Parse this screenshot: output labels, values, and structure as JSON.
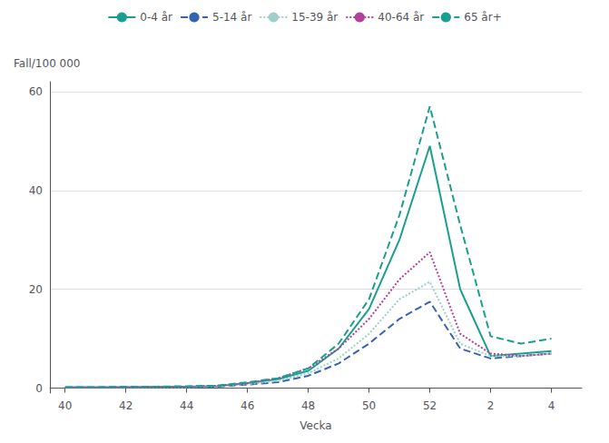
{
  "chart_data": {
    "type": "line",
    "xlabel": "Vecka",
    "ylabel": "Fall/100 000",
    "x": [
      40,
      41,
      42,
      43,
      44,
      45,
      46,
      47,
      48,
      49,
      50,
      51,
      52,
      53,
      54,
      55,
      56
    ],
    "xlim": [
      39.5,
      57
    ],
    "xticks": [
      40,
      42,
      44,
      46,
      48,
      50,
      52,
      {
        "value": 54,
        "label": "2"
      },
      {
        "value": 56,
        "label": "4"
      }
    ],
    "ylim": [
      -1,
      62
    ],
    "yticks": [
      0,
      20,
      40,
      60
    ],
    "grid": true,
    "legend": "top",
    "series": [
      {
        "name": "0-4 år",
        "color": "#1a9e8f",
        "line_style": "solid",
        "values": [
          0.2,
          0.2,
          0.2,
          0.3,
          0.3,
          0.4,
          1.0,
          1.8,
          3.5,
          8.0,
          16.0,
          30.0,
          49.0,
          20.0,
          6.5,
          7.0,
          7.5
        ]
      },
      {
        "name": "5-14 år",
        "color": "#3565b0",
        "line_style": "dashed",
        "values": [
          0.1,
          0.1,
          0.1,
          0.2,
          0.2,
          0.3,
          0.7,
          1.2,
          2.5,
          5.0,
          9.0,
          14.0,
          17.5,
          8.0,
          6.0,
          6.5,
          7.0
        ]
      },
      {
        "name": "15-39 år",
        "color": "#9ecfcb",
        "line_style": "dotted",
        "values": [
          0.1,
          0.1,
          0.2,
          0.2,
          0.2,
          0.4,
          0.8,
          1.5,
          3.0,
          6.0,
          11.0,
          18.0,
          21.5,
          9.0,
          6.5,
          6.5,
          7.0
        ]
      },
      {
        "name": "40-64 år",
        "color": "#b3409a",
        "line_style": "dotted",
        "values": [
          0.1,
          0.1,
          0.2,
          0.2,
          0.3,
          0.5,
          1.0,
          2.0,
          4.0,
          8.0,
          14.0,
          22.0,
          27.5,
          11.0,
          7.0,
          6.5,
          7.0
        ]
      },
      {
        "name": "65 år+",
        "color": "#1a9e8f",
        "line_style": "dashed",
        "values": [
          0.2,
          0.2,
          0.3,
          0.3,
          0.4,
          0.5,
          1.2,
          2.0,
          4.0,
          9.0,
          18.0,
          35.0,
          57.0,
          33.0,
          10.5,
          9.0,
          10.0
        ]
      }
    ]
  }
}
